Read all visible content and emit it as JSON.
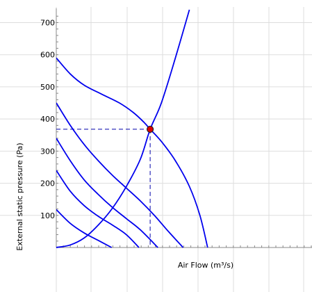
{
  "chart_data": {
    "type": "line",
    "title": "",
    "xlabel": "Air Flow (m³/s)",
    "ylabel": "External static pressure (Pa)",
    "xlim": [
      0,
      365
    ],
    "ylim": [
      0,
      740
    ],
    "yticks": [
      100,
      200,
      300,
      400,
      500,
      600,
      700
    ],
    "grid": true,
    "colors": {
      "curve": "#0000ee",
      "grid": "#dddddd",
      "axis": "#888888",
      "point_fill": "#dd0000",
      "point_stroke": "#222222",
      "guide": "#0000aa"
    },
    "series": [
      {
        "kind": "fan-curve",
        "x": [
          0,
          20,
          40,
          65,
          90,
          110,
          125,
          134,
          150,
          170,
          190,
          205,
          216
        ],
        "y": [
          590,
          540,
          505,
          477,
          450,
          420,
          390,
          368,
          330,
          270,
          190,
          100,
          0
        ]
      },
      {
        "kind": "fan-curve",
        "x": [
          0,
          20,
          40,
          60,
          80,
          100,
          120,
          140,
          160,
          181
        ],
        "y": [
          450,
          380,
          320,
          270,
          225,
          185,
          145,
          100,
          50,
          0
        ]
      },
      {
        "kind": "fan-curve",
        "x": [
          0,
          20,
          40,
          60,
          80,
          100,
          120,
          145
        ],
        "y": [
          340,
          270,
          210,
          165,
          125,
          90,
          55,
          0
        ]
      },
      {
        "kind": "fan-curve",
        "x": [
          0,
          20,
          40,
          60,
          80,
          100,
          118
        ],
        "y": [
          240,
          175,
          130,
          97,
          70,
          40,
          0
        ]
      },
      {
        "kind": "fan-curve",
        "x": [
          0,
          20,
          40,
          60,
          79
        ],
        "y": [
          118,
          75,
          45,
          22,
          0
        ]
      },
      {
        "kind": "system-curve",
        "x": [
          0,
          20,
          40,
          60,
          80,
          100,
          120,
          134,
          150,
          170,
          190
        ],
        "y": [
          0,
          8,
          30,
          70,
          122,
          190,
          275,
          368,
          450,
          590,
          740
        ]
      }
    ],
    "operating_point": {
      "x": 134,
      "y": 368
    }
  }
}
